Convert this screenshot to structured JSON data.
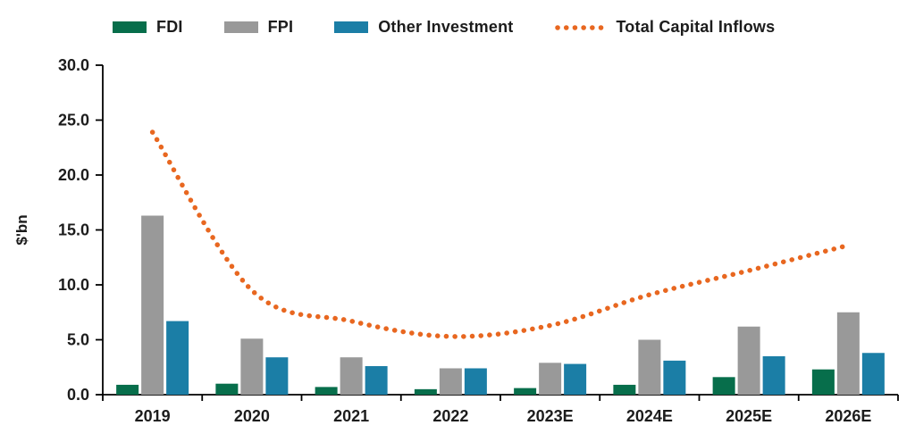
{
  "legend": {
    "items": [
      {
        "label": "FDI",
        "color": "#076E4B",
        "swatch": "bar"
      },
      {
        "label": "FPI",
        "color": "#999999",
        "swatch": "bar"
      },
      {
        "label": "Other Investment",
        "color": "#1B7EA6",
        "swatch": "bar"
      },
      {
        "label": "Total Capital Inflows",
        "color": "#E86720",
        "swatch": "dotted-line"
      }
    ]
  },
  "chart_data": {
    "type": "bar",
    "title": "",
    "categories": [
      "2019",
      "2020",
      "2021",
      "2022",
      "2023E",
      "2024E",
      "2025E",
      "2026E"
    ],
    "series": [
      {
        "name": "FDI",
        "type": "bar",
        "color": "#076E4B",
        "values": [
          0.9,
          1.0,
          0.7,
          0.5,
          0.6,
          0.9,
          1.6,
          2.3
        ]
      },
      {
        "name": "FPI",
        "type": "bar",
        "color": "#999999",
        "values": [
          16.3,
          5.1,
          3.4,
          2.4,
          2.9,
          5.0,
          6.2,
          7.5
        ]
      },
      {
        "name": "Other Investment",
        "type": "bar",
        "color": "#1B7EA6",
        "values": [
          6.7,
          3.4,
          2.6,
          2.4,
          2.8,
          3.1,
          3.5,
          3.8
        ]
      },
      {
        "name": "Total Capital Inflows",
        "type": "line",
        "line_style": "dotted",
        "smooth": true,
        "color": "#E86720",
        "values": [
          23.9,
          9.5,
          6.7,
          5.3,
          6.3,
          9.1,
          11.3,
          13.6
        ]
      }
    ],
    "xlabel": "",
    "ylabel": "$'bn",
    "ylim": [
      0,
      30
    ],
    "ytick_step": 5,
    "ytick_labels": [
      "0.0",
      "5.0",
      "10.0",
      "15.0",
      "20.0",
      "25.0",
      "30.0"
    ],
    "grid": false,
    "legend_position": "top"
  }
}
